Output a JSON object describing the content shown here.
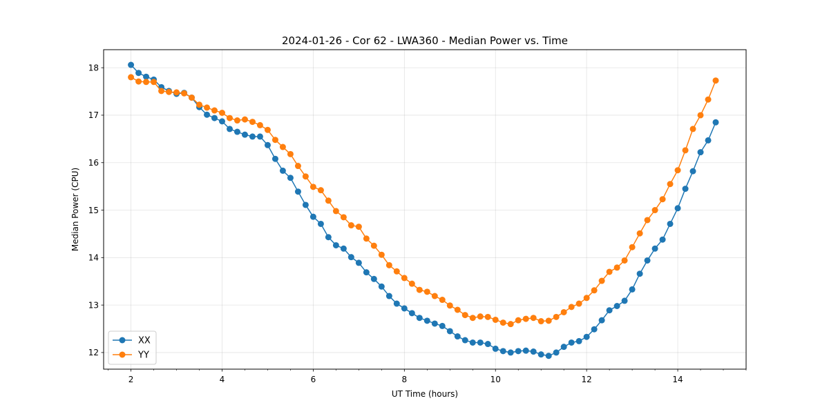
{
  "chart_data": {
    "type": "line",
    "title": "2024-01-26 - Cor 62 - LWA360 - Median Power vs. Time",
    "xlabel": "UT Time (hours)",
    "ylabel": "Median Power (CPU)",
    "xlim": [
      1.4,
      15.5
    ],
    "ylim": [
      11.65,
      18.38
    ],
    "xticks": [
      2,
      4,
      6,
      8,
      10,
      12,
      14
    ],
    "yticks": [
      12,
      13,
      14,
      15,
      16,
      17,
      18
    ],
    "grid": true,
    "legend_position": "lower-left",
    "x": [
      2.0,
      2.167,
      2.333,
      2.5,
      2.667,
      2.833,
      3.0,
      3.167,
      3.333,
      3.5,
      3.667,
      3.833,
      4.0,
      4.167,
      4.333,
      4.5,
      4.667,
      4.833,
      5.0,
      5.167,
      5.333,
      5.5,
      5.667,
      5.833,
      6.0,
      6.167,
      6.333,
      6.5,
      6.667,
      6.833,
      7.0,
      7.167,
      7.333,
      7.5,
      7.667,
      7.833,
      8.0,
      8.167,
      8.333,
      8.5,
      8.667,
      8.833,
      9.0,
      9.167,
      9.333,
      9.5,
      9.667,
      9.833,
      10.0,
      10.167,
      10.333,
      10.5,
      10.667,
      10.833,
      11.0,
      11.167,
      11.333,
      11.5,
      11.667,
      11.833,
      12.0,
      12.167,
      12.333,
      12.5,
      12.667,
      12.833,
      13.0,
      13.167,
      13.333,
      13.5,
      13.667,
      13.833,
      14.0,
      14.167,
      14.333,
      14.5,
      14.667,
      14.833
    ],
    "series": [
      {
        "name": "XX",
        "color": "#1f77b4",
        "values": [
          18.06,
          17.89,
          17.81,
          17.75,
          17.59,
          17.51,
          17.45,
          17.47,
          17.37,
          17.17,
          17.01,
          16.94,
          16.87,
          16.71,
          16.65,
          16.59,
          16.55,
          16.55,
          16.37,
          16.08,
          15.83,
          15.68,
          15.39,
          15.11,
          14.86,
          14.71,
          14.43,
          14.26,
          14.19,
          14.01,
          13.89,
          13.69,
          13.55,
          13.39,
          13.19,
          13.03,
          12.93,
          12.83,
          12.73,
          12.67,
          12.61,
          12.56,
          12.45,
          12.34,
          12.26,
          12.21,
          12.21,
          12.18,
          12.08,
          12.03,
          12.0,
          12.03,
          12.04,
          12.02,
          11.96,
          11.93,
          12.0,
          12.12,
          12.21,
          12.24,
          12.33,
          12.49,
          12.68,
          12.89,
          12.98,
          13.09,
          13.33,
          13.66,
          13.94,
          14.19,
          14.38,
          14.71,
          15.04,
          15.45,
          15.82,
          16.22,
          16.47,
          16.85
        ]
      },
      {
        "name": "YY",
        "color": "#ff7f0e",
        "values": [
          17.8,
          17.71,
          17.7,
          17.7,
          17.51,
          17.49,
          17.48,
          17.46,
          17.37,
          17.22,
          17.16,
          17.1,
          17.05,
          16.94,
          16.89,
          16.91,
          16.86,
          16.79,
          16.69,
          16.48,
          16.33,
          16.18,
          15.93,
          15.71,
          15.49,
          15.42,
          15.2,
          14.98,
          14.85,
          14.68,
          14.65,
          14.4,
          14.25,
          14.06,
          13.84,
          13.71,
          13.57,
          13.45,
          13.32,
          13.28,
          13.19,
          13.11,
          12.99,
          12.9,
          12.79,
          12.73,
          12.76,
          12.75,
          12.69,
          12.63,
          12.6,
          12.68,
          12.71,
          12.73,
          12.66,
          12.67,
          12.75,
          12.85,
          12.96,
          13.03,
          13.15,
          13.31,
          13.51,
          13.7,
          13.79,
          13.94,
          14.22,
          14.51,
          14.79,
          15.0,
          15.23,
          15.55,
          15.84,
          16.26,
          16.71,
          17.0,
          17.33,
          17.73
        ]
      }
    ]
  }
}
